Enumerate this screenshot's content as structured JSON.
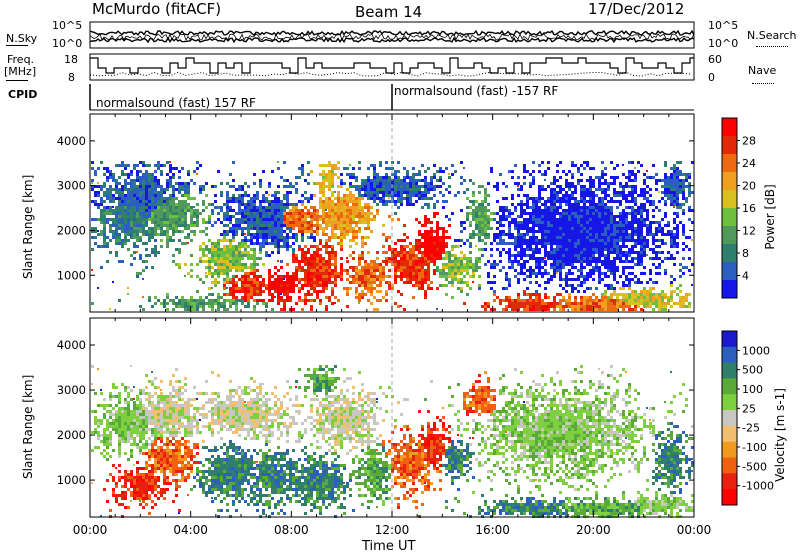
{
  "header": {
    "station": "McMurdo (fitACF)",
    "beam": "Beam 14",
    "date": "17/Dec/2012"
  },
  "status_panel": {
    "nsky_label": "N.Sky",
    "nsearch_label": "N.Search",
    "noise_ticks": [
      "10^5",
      "10^0"
    ],
    "freq_label_line1": "Freq.",
    "freq_label_line2": "[MHz]",
    "freq_ticks": [
      "18",
      "8"
    ],
    "nave_label": "Nave",
    "nave_ticks": [
      "60",
      "0"
    ],
    "cpid_label": "CPID",
    "cpid_segments": [
      {
        "text": "normalsound (fast) 157 RF",
        "start_hour": 0
      },
      {
        "text": "normalsound (fast) -157 RF",
        "start_hour": 12
      }
    ]
  },
  "chart_data": [
    {
      "type": "heatmap",
      "title": "",
      "xlabel": "Time UT",
      "ylabel": "Slant Range [km]",
      "x_ticks": [
        "00:00",
        "04:00",
        "08:00",
        "12:00",
        "16:00",
        "20:00",
        "00:00"
      ],
      "xlim_hours": [
        0,
        24
      ],
      "y_ticks": [
        1000,
        2000,
        3000,
        4000
      ],
      "ylim": [
        180,
        4600
      ],
      "colorbar": {
        "label": "Power [dB]",
        "ticks": [
          "4",
          "8",
          "12",
          "16",
          "20",
          "24",
          "28"
        ],
        "range": [
          0,
          32
        ],
        "colors": [
          "#1616e6",
          "#2b5fbf",
          "#2f7f6f",
          "#4f9a5a",
          "#6fbf3f",
          "#d8c020",
          "#f0a020",
          "#ee6a10",
          "#e02a08",
          "#ff0000"
        ]
      }
    },
    {
      "type": "heatmap",
      "title": "",
      "xlabel": "Time UT",
      "ylabel": "Slant Range [km]",
      "x_ticks": [
        "00:00",
        "04:00",
        "08:00",
        "12:00",
        "16:00",
        "20:00",
        "00:00"
      ],
      "xlim_hours": [
        0,
        24
      ],
      "y_ticks": [
        1000,
        2000,
        3000,
        4000
      ],
      "ylim": [
        180,
        4600
      ],
      "colorbar": {
        "label": "Velocity [m s-1]",
        "ticks": [
          "1000",
          "500",
          "100",
          "25",
          "-25",
          "-100",
          "-500",
          "-1000"
        ],
        "colors": [
          "#1a1acc",
          "#2d5fbf",
          "#2f7f6a",
          "#5aaa3a",
          "#7fd040",
          "#c8c8c0",
          "#f0c070",
          "#f09a20",
          "#f06010",
          "#e82010",
          "#ff0000"
        ]
      }
    }
  ],
  "x_axis_title": "Time UT"
}
